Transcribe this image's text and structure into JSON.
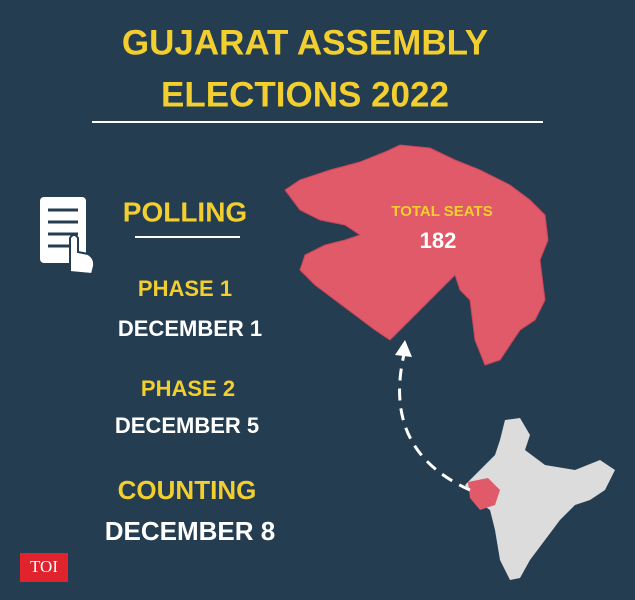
{
  "header": {
    "title_lines": [
      "GUJARAT ASSEMBLY",
      "ELECTIONS 2022"
    ]
  },
  "polling": {
    "heading": "POLLING",
    "phases": [
      {
        "label": "PHASE 1",
        "date": "DECEMBER 1"
      },
      {
        "label": "PHASE 2",
        "date": "DECEMBER 5"
      }
    ]
  },
  "counting": {
    "label": "COUNTING",
    "date": "DECEMBER 8"
  },
  "map": {
    "seats_label": "TOTAL SEATS",
    "seats": 182
  },
  "logo": "TOI"
}
